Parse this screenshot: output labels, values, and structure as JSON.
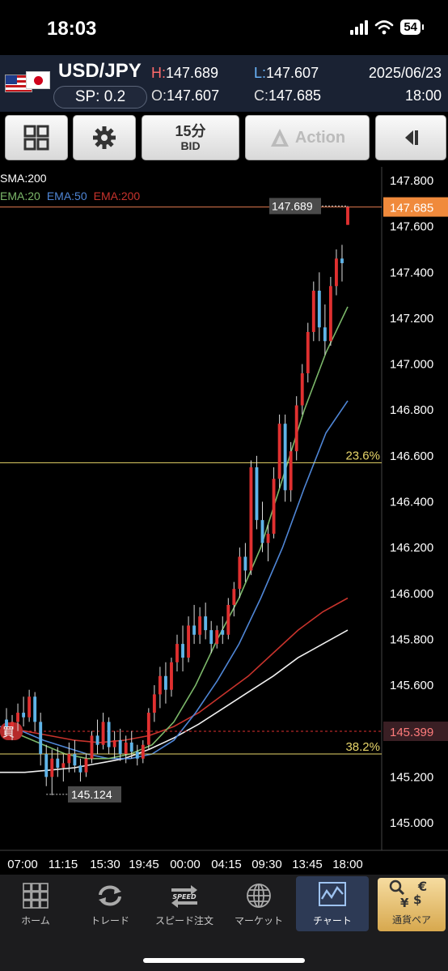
{
  "status": {
    "time": "18:03",
    "battery": "54"
  },
  "header": {
    "pair": "USD/JPY",
    "spread": "SP: 0.2",
    "high_label": "H:",
    "high": "147.689",
    "low_label": "L:",
    "low": "147.607",
    "open_label": "O:",
    "open": "147.607",
    "close_label": "C:",
    "close": "147.685",
    "date": "2025/06/23",
    "time": "18:00"
  },
  "toolbar": {
    "timeframe": "15分",
    "price_side": "BID",
    "action": "Action"
  },
  "chart": {
    "indicator_sma": "SMA:200",
    "indicator_ema20": "EMA:20",
    "indicator_ema50": "EMA:50",
    "indicator_ema200": "EMA:200",
    "buy_label": "買",
    "high_marker": "147.689",
    "low_marker": "145.124",
    "current_price": "147.685",
    "buy_price": "145.399",
    "fib_236": "23.6%",
    "fib_382": "38.2%",
    "colors": {
      "up": "#e03030",
      "down": "#5fb4e8",
      "ema20": "#7cb86a",
      "ema50": "#4f86d6",
      "ema200": "#c8332c",
      "sma200": "#f0f0f0",
      "fib": "#e8d66a"
    }
  },
  "chart_data": {
    "type": "candlestick",
    "y_ticks": [
      "147.800",
      "147.600",
      "147.400",
      "147.200",
      "147.000",
      "146.800",
      "146.600",
      "146.400",
      "146.200",
      "146.000",
      "145.800",
      "145.600",
      "145.400",
      "145.200",
      "145.000"
    ],
    "x_ticks": [
      "07:00",
      "11:15",
      "15:30",
      "19:45",
      "00:00",
      "04:15",
      "09:30",
      "13:45",
      "18:00"
    ],
    "ylim": [
      144.88,
      147.86
    ],
    "candles": [
      {
        "o": 145.45,
        "h": 145.5,
        "l": 145.38,
        "c": 145.42
      },
      {
        "o": 145.42,
        "h": 145.47,
        "l": 145.36,
        "c": 145.44
      },
      {
        "o": 145.44,
        "h": 145.52,
        "l": 145.4,
        "c": 145.48
      },
      {
        "o": 145.48,
        "h": 145.55,
        "l": 145.42,
        "c": 145.46
      },
      {
        "o": 145.46,
        "h": 145.58,
        "l": 145.44,
        "c": 145.55
      },
      {
        "o": 145.55,
        "h": 145.57,
        "l": 145.4,
        "c": 145.44
      },
      {
        "o": 145.44,
        "h": 145.48,
        "l": 145.25,
        "c": 145.3
      },
      {
        "o": 145.3,
        "h": 145.34,
        "l": 145.16,
        "c": 145.2
      },
      {
        "o": 145.2,
        "h": 145.32,
        "l": 145.12,
        "c": 145.28
      },
      {
        "o": 145.28,
        "h": 145.33,
        "l": 145.2,
        "c": 145.24
      },
      {
        "o": 145.24,
        "h": 145.3,
        "l": 145.18,
        "c": 145.26
      },
      {
        "o": 145.26,
        "h": 145.35,
        "l": 145.22,
        "c": 145.3
      },
      {
        "o": 145.3,
        "h": 145.36,
        "l": 145.22,
        "c": 145.25
      },
      {
        "o": 145.25,
        "h": 145.28,
        "l": 145.18,
        "c": 145.22
      },
      {
        "o": 145.22,
        "h": 145.3,
        "l": 145.2,
        "c": 145.28
      },
      {
        "o": 145.28,
        "h": 145.4,
        "l": 145.26,
        "c": 145.38
      },
      {
        "o": 145.38,
        "h": 145.45,
        "l": 145.3,
        "c": 145.34
      },
      {
        "o": 145.34,
        "h": 145.48,
        "l": 145.32,
        "c": 145.44
      },
      {
        "o": 145.44,
        "h": 145.46,
        "l": 145.3,
        "c": 145.33
      },
      {
        "o": 145.33,
        "h": 145.4,
        "l": 145.28,
        "c": 145.36
      },
      {
        "o": 145.36,
        "h": 145.41,
        "l": 145.27,
        "c": 145.3
      },
      {
        "o": 145.3,
        "h": 145.38,
        "l": 145.26,
        "c": 145.35
      },
      {
        "o": 145.35,
        "h": 145.4,
        "l": 145.28,
        "c": 145.31
      },
      {
        "o": 145.31,
        "h": 145.34,
        "l": 145.25,
        "c": 145.28
      },
      {
        "o": 145.28,
        "h": 145.36,
        "l": 145.26,
        "c": 145.34
      },
      {
        "o": 145.34,
        "h": 145.5,
        "l": 145.32,
        "c": 145.48
      },
      {
        "o": 145.48,
        "h": 145.6,
        "l": 145.44,
        "c": 145.56
      },
      {
        "o": 145.56,
        "h": 145.68,
        "l": 145.5,
        "c": 145.64
      },
      {
        "o": 145.64,
        "h": 145.7,
        "l": 145.52,
        "c": 145.58
      },
      {
        "o": 145.58,
        "h": 145.72,
        "l": 145.55,
        "c": 145.7
      },
      {
        "o": 145.7,
        "h": 145.82,
        "l": 145.66,
        "c": 145.78
      },
      {
        "o": 145.78,
        "h": 145.86,
        "l": 145.66,
        "c": 145.72
      },
      {
        "o": 145.72,
        "h": 145.9,
        "l": 145.7,
        "c": 145.86
      },
      {
        "o": 145.86,
        "h": 145.95,
        "l": 145.78,
        "c": 145.82
      },
      {
        "o": 145.82,
        "h": 145.94,
        "l": 145.78,
        "c": 145.9
      },
      {
        "o": 145.9,
        "h": 145.96,
        "l": 145.8,
        "c": 145.84
      },
      {
        "o": 145.84,
        "h": 145.88,
        "l": 145.74,
        "c": 145.78
      },
      {
        "o": 145.78,
        "h": 145.86,
        "l": 145.76,
        "c": 145.84
      },
      {
        "o": 145.84,
        "h": 145.9,
        "l": 145.78,
        "c": 145.82
      },
      {
        "o": 145.82,
        "h": 145.98,
        "l": 145.8,
        "c": 145.95
      },
      {
        "o": 145.95,
        "h": 146.05,
        "l": 145.9,
        "c": 146.02
      },
      {
        "o": 146.02,
        "h": 146.2,
        "l": 145.98,
        "c": 146.16
      },
      {
        "o": 146.16,
        "h": 146.22,
        "l": 146.05,
        "c": 146.1
      },
      {
        "o": 146.1,
        "h": 146.58,
        "l": 146.08,
        "c": 146.55
      },
      {
        "o": 146.55,
        "h": 146.6,
        "l": 146.28,
        "c": 146.32
      },
      {
        "o": 146.32,
        "h": 146.4,
        "l": 146.18,
        "c": 146.22
      },
      {
        "o": 146.22,
        "h": 146.3,
        "l": 146.14,
        "c": 146.26
      },
      {
        "o": 146.26,
        "h": 146.55,
        "l": 146.24,
        "c": 146.5
      },
      {
        "o": 146.5,
        "h": 146.78,
        "l": 146.46,
        "c": 146.74
      },
      {
        "o": 146.74,
        "h": 146.78,
        "l": 146.4,
        "c": 146.45
      },
      {
        "o": 146.45,
        "h": 146.66,
        "l": 146.4,
        "c": 146.62
      },
      {
        "o": 146.62,
        "h": 146.86,
        "l": 146.58,
        "c": 146.82
      },
      {
        "o": 146.82,
        "h": 147.0,
        "l": 146.78,
        "c": 146.96
      },
      {
        "o": 146.96,
        "h": 147.18,
        "l": 146.92,
        "c": 147.14
      },
      {
        "o": 147.14,
        "h": 147.36,
        "l": 147.1,
        "c": 147.32
      },
      {
        "o": 147.32,
        "h": 147.4,
        "l": 147.1,
        "c": 147.16
      },
      {
        "o": 147.16,
        "h": 147.26,
        "l": 147.04,
        "c": 147.1
      },
      {
        "o": 147.1,
        "h": 147.38,
        "l": 147.08,
        "c": 147.34
      },
      {
        "o": 147.34,
        "h": 147.5,
        "l": 147.3,
        "c": 147.46
      },
      {
        "o": 147.46,
        "h": 147.52,
        "l": 147.36,
        "c": 147.44
      },
      {
        "o": 147.607,
        "h": 147.689,
        "l": 147.607,
        "c": 147.685
      }
    ],
    "ema20": [
      145.4,
      145.38,
      145.34,
      145.3,
      145.28,
      145.28,
      145.3,
      145.34,
      145.44,
      145.6,
      145.8,
      145.98,
      146.2,
      146.5,
      146.8,
      147.05,
      147.25
    ],
    "ema50": [
      145.42,
      145.4,
      145.36,
      145.33,
      145.3,
      145.28,
      145.28,
      145.3,
      145.36,
      145.48,
      145.62,
      145.78,
      145.98,
      146.2,
      146.46,
      146.7,
      146.84
    ],
    "ema200": [
      145.42,
      145.4,
      145.38,
      145.36,
      145.35,
      145.36,
      145.38,
      145.42,
      145.48,
      145.56,
      145.64,
      145.74,
      145.84,
      145.92,
      145.98
    ],
    "sma200": [
      145.22,
      145.22,
      145.23,
      145.24,
      145.26,
      145.28,
      145.32,
      145.37,
      145.43,
      145.5,
      145.57,
      145.64,
      145.72,
      145.78,
      145.84
    ],
    "fib_levels": [
      {
        "label": "23.6%",
        "value": 146.57
      },
      {
        "label": "38.2%",
        "value": 145.3
      }
    ],
    "buy_price": 145.399,
    "current_price": 147.685,
    "high_marker": 147.689,
    "low_marker": 145.124
  },
  "nav": {
    "items": [
      {
        "label": "ホーム",
        "icon": "grid-icon"
      },
      {
        "label": "トレード",
        "icon": "refresh-arrows-icon"
      },
      {
        "label": "スピード注文",
        "icon": "speed-arrows-icon"
      },
      {
        "label": "マーケット",
        "icon": "globe-icon"
      },
      {
        "label": "チャート",
        "icon": "chart-icon"
      }
    ],
    "pairs": {
      "label": "通貨ペア",
      "icon": "currency-icon"
    }
  }
}
